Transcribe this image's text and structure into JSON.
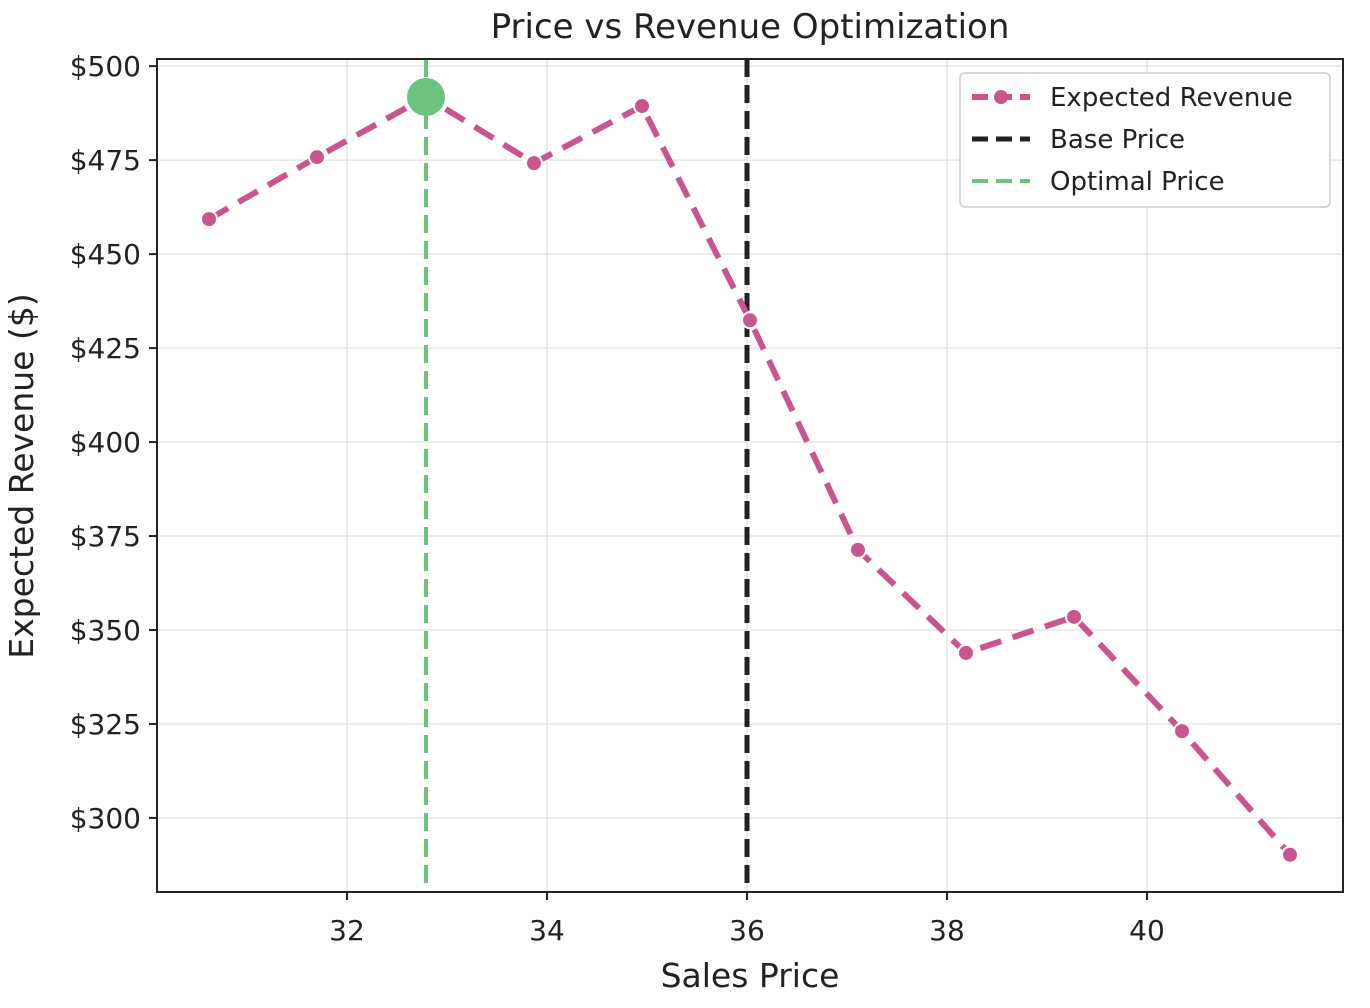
{
  "chart_data": {
    "type": "line",
    "title": "Price vs Revenue Optimization",
    "xlabel": "Sales Price",
    "ylabel": "Expected Revenue ($)",
    "xlim": [
      30.1,
      41.96
    ],
    "ylim": [
      280.3,
      501.9
    ],
    "xticks": [
      32,
      34,
      36,
      38,
      40
    ],
    "yticks": [
      300,
      325,
      350,
      375,
      400,
      425,
      450,
      475,
      500
    ],
    "ytick_labels": [
      "$300",
      "$325",
      "$350",
      "$375",
      "$400",
      "$425",
      "$450",
      "$475",
      "$500"
    ],
    "grid": true,
    "legend_position": "top-right",
    "series": [
      {
        "name": "Expected Revenue",
        "color": "#c9558f",
        "style": "dashed-with-markers",
        "x": [
          30.62,
          31.7,
          32.79,
          33.87,
          34.95,
          36.03,
          37.11,
          38.19,
          39.27,
          40.35,
          41.43
        ],
        "y": [
          459.3,
          475.8,
          491.8,
          474.2,
          489.4,
          432.4,
          371.3,
          343.9,
          353.5,
          323.1,
          290.2
        ]
      }
    ],
    "vlines": [
      {
        "name": "Base Price",
        "x": 36.0,
        "color": "#222222"
      },
      {
        "name": "Optimal Price",
        "x": 32.79,
        "color": "#6cc47c"
      }
    ],
    "highlight_point": {
      "x": 32.79,
      "y": 491.8,
      "color": "#6cc47c"
    }
  }
}
